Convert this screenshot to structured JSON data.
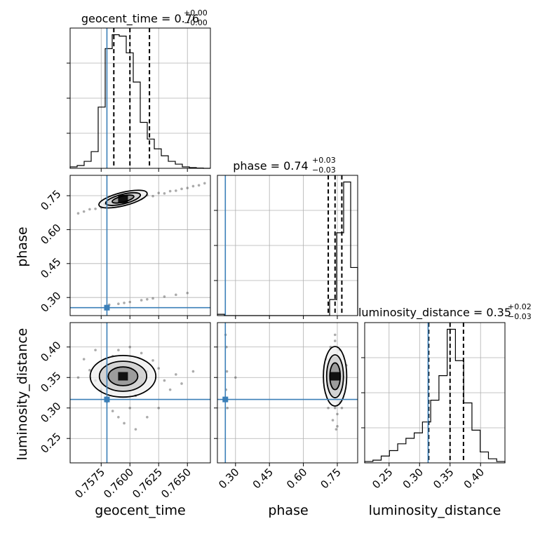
{
  "chart_data": {
    "type": "corner",
    "truth_color": "#3b7fb8",
    "parameters": [
      {
        "name": "geocent_time",
        "label": "geocent_time",
        "title_main": "geocent_time = 0.76",
        "title_plus": "+0.00",
        "title_minus": "−0.00",
        "range": [
          0.7548,
          0.767
        ],
        "ticks": [
          0.7575,
          0.76,
          0.7625,
          0.765
        ],
        "tick_labels": [
          "0.7575",
          "0.7600",
          "0.7625",
          "0.7650"
        ],
        "truth": 0.758,
        "quantiles": [
          0.7586,
          0.76,
          0.7617
        ],
        "hist_counts": [
          1,
          2,
          5,
          12,
          44,
          86,
          96,
          95,
          83,
          62,
          33,
          21,
          14,
          9,
          5,
          3,
          1,
          0.5,
          0.2,
          0
        ]
      },
      {
        "name": "phase",
        "label": "phase",
        "title_main": "phase = 0.74",
        "title_plus": "+0.03",
        "title_minus": "−0.03",
        "range": [
          0.22,
          0.84
        ],
        "ticks": [
          0.3,
          0.45,
          0.6,
          0.75
        ],
        "tick_labels": [
          "0.30",
          "0.45",
          "0.60",
          "0.75"
        ],
        "truth": 0.255,
        "quantiles": [
          0.71,
          0.74,
          0.77
        ],
        "hist_counts": [
          1,
          0,
          0,
          0,
          0,
          0,
          0,
          0,
          0,
          0,
          0,
          0,
          0,
          0,
          0,
          0,
          12,
          62,
          100,
          36
        ]
      },
      {
        "name": "luminosity_distance",
        "label": "luminosity_distance",
        "title_main": "luminosity_distance = 0.35",
        "title_plus": "+0.02",
        "title_minus": "−0.03",
        "range": [
          0.21,
          0.44
        ],
        "ticks": [
          0.25,
          0.3,
          0.35,
          0.4
        ],
        "tick_labels": [
          "0.25",
          "0.30",
          "0.35",
          "0.40"
        ],
        "truth": 0.314,
        "quantiles": [
          0.315,
          0.35,
          0.372
        ],
        "hist_counts": [
          1,
          2,
          5,
          9,
          14,
          18,
          22,
          30,
          46,
          64,
          98,
          75,
          44,
          24,
          8,
          3,
          1
        ]
      }
    ],
    "pairs": [
      {
        "x": "geocent_time",
        "y": "phase",
        "peak": [
          0.7594,
          0.735
        ],
        "samples": [
          [
            0.756,
            0.68
          ],
          [
            0.757,
            0.692
          ],
          [
            0.758,
            0.7
          ],
          [
            0.7585,
            0.706
          ],
          [
            0.759,
            0.712
          ],
          [
            0.7595,
            0.718
          ],
          [
            0.76,
            0.724
          ],
          [
            0.7605,
            0.73
          ],
          [
            0.761,
            0.736
          ],
          [
            0.762,
            0.748
          ],
          [
            0.763,
            0.76
          ],
          [
            0.764,
            0.772
          ],
          [
            0.765,
            0.784
          ],
          [
            0.766,
            0.796
          ],
          [
            0.7588,
            0.73
          ],
          [
            0.7592,
            0.742
          ],
          [
            0.7598,
            0.738
          ],
          [
            0.7603,
            0.745
          ],
          [
            0.7608,
            0.75
          ],
          [
            0.7583,
            0.722
          ],
          [
            0.7578,
            0.712
          ],
          [
            0.7615,
            0.752
          ],
          [
            0.7625,
            0.762
          ],
          [
            0.7635,
            0.77
          ],
          [
            0.7645,
            0.78
          ],
          [
            0.7655,
            0.792
          ],
          [
            0.7665,
            0.805
          ],
          [
            0.7575,
            0.698
          ],
          [
            0.7565,
            0.69
          ],
          [
            0.7555,
            0.672
          ],
          [
            0.7582,
            0.268
          ],
          [
            0.759,
            0.272
          ],
          [
            0.76,
            0.28
          ],
          [
            0.761,
            0.288
          ],
          [
            0.762,
            0.296
          ],
          [
            0.763,
            0.304
          ],
          [
            0.764,
            0.312
          ],
          [
            0.765,
            0.32
          ],
          [
            0.7595,
            0.276
          ],
          [
            0.7615,
            0.292
          ]
        ]
      },
      {
        "x": "geocent_time",
        "y": "luminosity_distance",
        "peak": [
          0.7594,
          0.352
        ],
        "samples": [
          [
            0.756,
            0.38
          ],
          [
            0.7565,
            0.362
          ],
          [
            0.757,
            0.345
          ],
          [
            0.7575,
            0.33
          ],
          [
            0.758,
            0.31
          ],
          [
            0.7585,
            0.295
          ],
          [
            0.759,
            0.285
          ],
          [
            0.7595,
            0.275
          ],
          [
            0.76,
            0.3
          ],
          [
            0.7605,
            0.32
          ],
          [
            0.761,
            0.34
          ],
          [
            0.7615,
            0.36
          ],
          [
            0.762,
            0.378
          ],
          [
            0.7625,
            0.365
          ],
          [
            0.763,
            0.345
          ],
          [
            0.7635,
            0.33
          ],
          [
            0.764,
            0.355
          ],
          [
            0.7645,
            0.34
          ],
          [
            0.758,
            0.372
          ],
          [
            0.7585,
            0.385
          ],
          [
            0.759,
            0.395
          ],
          [
            0.76,
            0.4
          ],
          [
            0.761,
            0.39
          ],
          [
            0.7575,
            0.36
          ],
          [
            0.757,
            0.395
          ],
          [
            0.7605,
            0.265
          ],
          [
            0.7615,
            0.285
          ],
          [
            0.7625,
            0.3
          ],
          [
            0.7655,
            0.36
          ],
          [
            0.7555,
            0.35
          ],
          [
            0.7595,
            0.35
          ],
          [
            0.76,
            0.355
          ],
          [
            0.759,
            0.345
          ],
          [
            0.761,
            0.35
          ],
          [
            0.7598,
            0.338
          ]
        ]
      },
      {
        "x": "phase",
        "y": "luminosity_distance",
        "peak": [
          0.74,
          0.352
        ],
        "samples": [
          [
            0.7,
            0.38
          ],
          [
            0.71,
            0.36
          ],
          [
            0.72,
            0.34
          ],
          [
            0.73,
            0.32
          ],
          [
            0.74,
            0.3
          ],
          [
            0.75,
            0.29
          ],
          [
            0.76,
            0.31
          ],
          [
            0.77,
            0.33
          ],
          [
            0.78,
            0.35
          ],
          [
            0.79,
            0.37
          ],
          [
            0.72,
            0.4
          ],
          [
            0.74,
            0.41
          ],
          [
            0.76,
            0.395
          ],
          [
            0.73,
            0.28
          ],
          [
            0.75,
            0.27
          ],
          [
            0.71,
            0.3
          ],
          [
            0.77,
            0.3
          ],
          [
            0.745,
            0.352
          ],
          [
            0.735,
            0.345
          ],
          [
            0.755,
            0.36
          ],
          [
            0.725,
            0.365
          ],
          [
            0.765,
            0.34
          ],
          [
            0.74,
            0.42
          ],
          [
            0.745,
            0.265
          ],
          [
            0.26,
            0.4
          ],
          [
            0.262,
            0.36
          ],
          [
            0.258,
            0.33
          ],
          [
            0.264,
            0.3
          ],
          [
            0.3,
            0.35
          ],
          [
            0.256,
            0.42
          ]
        ]
      }
    ]
  }
}
